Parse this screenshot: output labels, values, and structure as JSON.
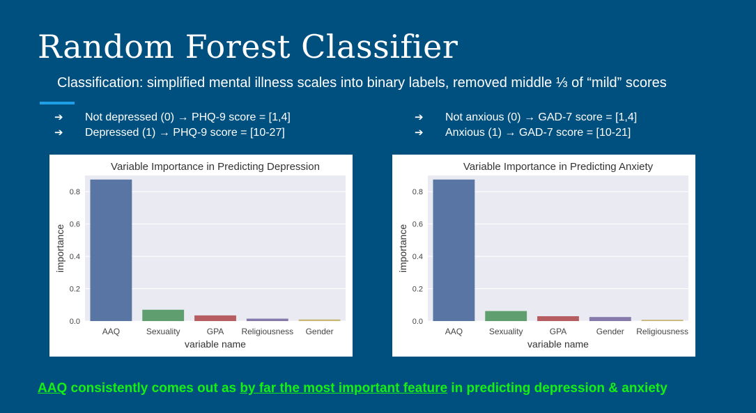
{
  "slide": {
    "title": "Random Forest Classifier",
    "subtitle": "Classification: simplified mental illness scales into binary labels, removed middle ⅓ of “mild” scores",
    "bullets_left": [
      "Not depressed (0) → PHQ-9 score = [1,4]",
      "Depressed (1) → PHQ-9 score = [10-27]"
    ],
    "bullets_right": [
      "Not anxious (0) → GAD-7 score = [1,4]",
      "Anxious (1) → GAD-7 score = [10-21]"
    ],
    "arrow_glyph": "➔",
    "footer": {
      "part1": "AAQ",
      "part2": " consistently comes out as ",
      "part3": "by far the most important feature",
      "part4": " in predicting depression & anxiety"
    },
    "colors": {
      "background": "#00507f",
      "accent": "#1fa0e6",
      "footer_text": "#14f014",
      "plot_bg": "#eaeaf2"
    }
  },
  "chart_data": [
    {
      "type": "bar",
      "title": "Variable Importance in Predicting Depression",
      "xlabel": "variable name",
      "ylabel": "importance",
      "categories": [
        "AAQ",
        "Sexuality",
        "GPA",
        "Religiousness",
        "Gender"
      ],
      "values": [
        0.875,
        0.07,
        0.035,
        0.015,
        0.01
      ],
      "colors": [
        "#5975a4",
        "#5f9e6e",
        "#b55d60",
        "#857aab",
        "#c9b679"
      ],
      "ylim": [
        0,
        0.9
      ],
      "yticks": [
        "0.0",
        "0.2",
        "0.4",
        "0.6",
        "0.8"
      ],
      "grid": true
    },
    {
      "type": "bar",
      "title": "Variable Importance in Predicting Anxiety",
      "xlabel": "variable name",
      "ylabel": "importance",
      "categories": [
        "AAQ",
        "Sexuality",
        "GPA",
        "Gender",
        "Religiousness"
      ],
      "values": [
        0.875,
        0.062,
        0.03,
        0.025,
        0.008
      ],
      "colors": [
        "#5975a4",
        "#5f9e6e",
        "#b55d60",
        "#857aab",
        "#c9b679"
      ],
      "ylim": [
        0,
        0.9
      ],
      "yticks": [
        "0.0",
        "0.2",
        "0.4",
        "0.6",
        "0.8"
      ],
      "grid": true
    }
  ]
}
